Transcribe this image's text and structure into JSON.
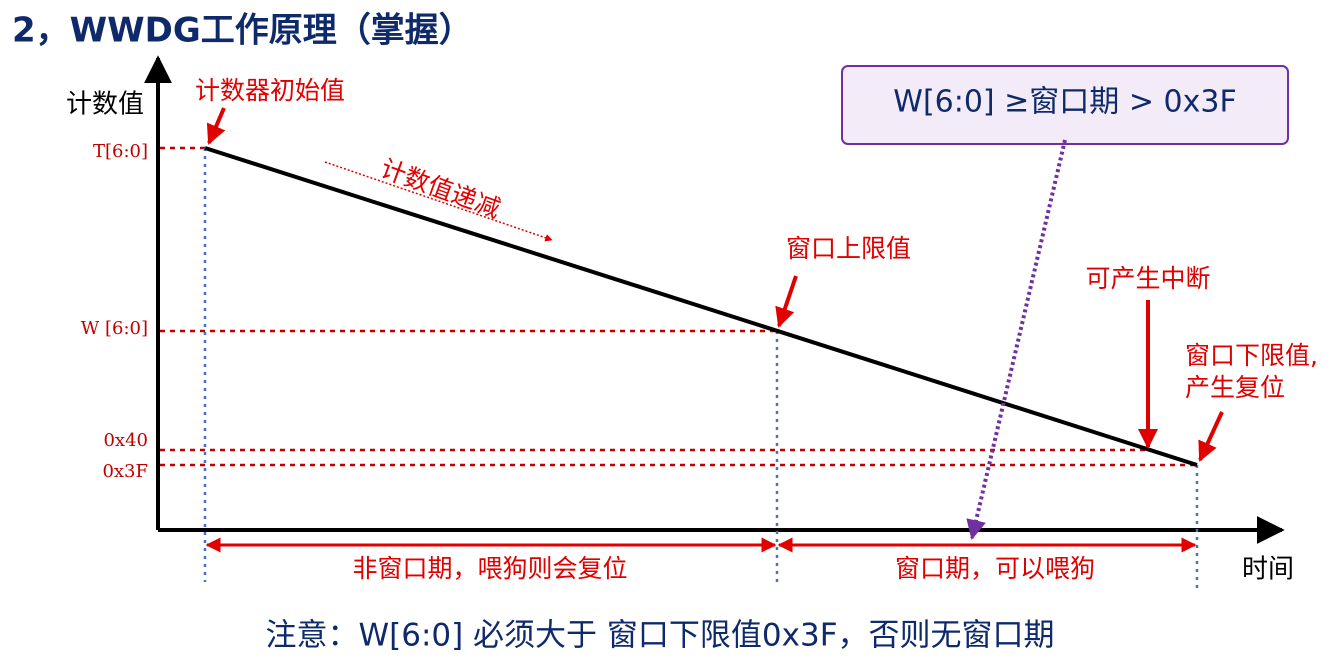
{
  "header": {
    "title": "2，WWDG工作原理（掌握）"
  },
  "axes": {
    "y_label": "计数值",
    "x_label": "时间"
  },
  "levels": [
    "T[6:0]",
    "W [6:0]",
    "0x40",
    "0x3F"
  ],
  "annotations": {
    "initial": "计数器初始值",
    "decreasing": "计数值递减",
    "upper": "窗口上限值",
    "interrupt": "可产生中断",
    "lower_1": "窗口下限值,",
    "lower_2": "产生复位"
  },
  "callout": "W[6:0] ≥窗口期 > 0x3F",
  "periods": {
    "non_window": "非窗口期，喂狗则会复位",
    "window": "窗口期，可以喂狗"
  },
  "note": "注意：W[6:0] 必须大于 窗口下限值0x3F，否则无窗口期"
}
